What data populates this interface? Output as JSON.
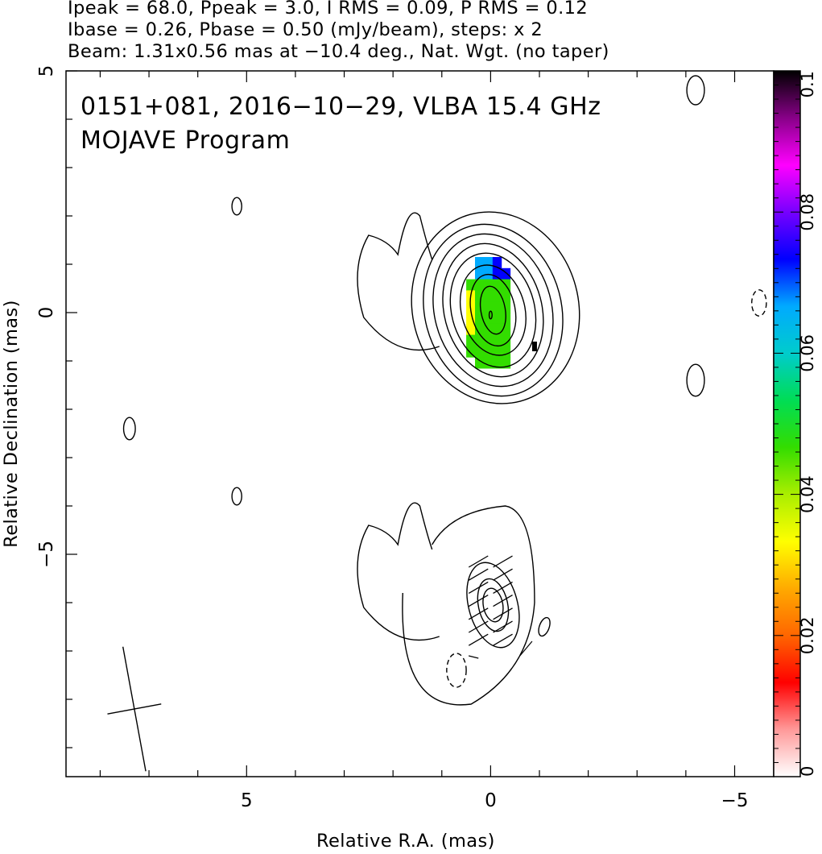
{
  "header": {
    "line1": "Ipeak = 68.0, Ppeak = 3.0, I RMS = 0.09, P RMS = 0.12",
    "line2": "Ibase = 0.26, Pbase = 0.50 (mJy/beam), steps: x 2",
    "line3": "Beam: 1.31x0.56 mas at −10.4 deg., Nat. Wgt. (no taper)"
  },
  "chart_data": {
    "type": "heatmap",
    "title": "0151+081, 2016−10−29, VLBA 15.4 GHz",
    "subtitle": "MOJAVE Program",
    "xlabel": "Relative R.A. (mas)",
    "ylabel": "Relative Declination (mas)",
    "xlim": [
      8.7,
      -5.8
    ],
    "ylim": [
      -9.6,
      5
    ],
    "x_ticks": [
      5,
      0,
      -5
    ],
    "x_tick_labels": [
      "5",
      "0",
      "−5"
    ],
    "y_ticks": [
      5,
      0,
      -5
    ],
    "y_tick_labels": [
      "5",
      "0",
      "−5"
    ],
    "colorbar": {
      "min": 0,
      "max": 0.1,
      "ticks": [
        0,
        0.02,
        0.04,
        0.06,
        0.08,
        0.1
      ],
      "tick_labels": [
        "0",
        "0.02",
        "0.04",
        "0.06",
        "0.08",
        "0.1"
      ],
      "colors": [
        "#ffffff",
        "#ff9999",
        "#ff0000",
        "#ff6600",
        "#ffaa00",
        "#ffff00",
        "#aaee00",
        "#33dd00",
        "#00dd55",
        "#00cccc",
        "#00aaff",
        "#0000ff",
        "#7700ff",
        "#ff00ff",
        "#880088",
        "#000000"
      ]
    },
    "upper_panel": {
      "contour_levels": 9,
      "contours": [
        {
          "cx": -0.1,
          "cy": 0.1,
          "rx": 1.7,
          "ry": 2.0,
          "angle": -15
        },
        {
          "cx": -0.05,
          "cy": 0.05,
          "rx": 1.4,
          "ry": 1.8,
          "angle": -15
        },
        {
          "cx": -0.05,
          "cy": 0.05,
          "rx": 1.2,
          "ry": 1.6,
          "angle": -15
        },
        {
          "cx": -0.05,
          "cy": 0.05,
          "rx": 1.0,
          "ry": 1.4,
          "angle": -15
        },
        {
          "cx": -0.05,
          "cy": 0.05,
          "rx": 0.85,
          "ry": 1.2,
          "angle": -15
        },
        {
          "cx": -0.05,
          "cy": 0.05,
          "rx": 0.65,
          "ry": 0.95,
          "angle": -15
        },
        {
          "cx": -0.05,
          "cy": 0.05,
          "rx": 0.45,
          "ry": 0.75,
          "angle": -12
        },
        {
          "cx": -0.05,
          "cy": 0.05,
          "rx": 0.25,
          "ry": 0.5,
          "angle": -10
        },
        {
          "cx": 0.0,
          "cy": -0.05,
          "rx": 0.03,
          "ry": 0.08,
          "angle": 0
        }
      ],
      "islands": [
        {
          "cx": 5.2,
          "cy": 2.2,
          "rx": 0.1,
          "ry": 0.18,
          "dashed": false
        },
        {
          "cx": -4.2,
          "cy": 4.6,
          "rx": 0.18,
          "ry": 0.3,
          "dashed": false
        },
        {
          "cx": -4.2,
          "cy": -1.4,
          "rx": 0.18,
          "ry": 0.33,
          "dashed": false
        },
        {
          "cx": -5.5,
          "cy": 0.2,
          "rx": 0.15,
          "ry": 0.27,
          "dashed": true
        }
      ],
      "polarization_fraction_color_values": [
        0.02,
        0.03,
        0.04,
        0.05,
        0.06,
        0.07
      ]
    },
    "lower_panel": {
      "contour_levels": 3,
      "evpa_vectors": 14,
      "islands": [
        {
          "cx": 7.4,
          "cy": -2.4,
          "rx": 0.12,
          "ry": 0.23,
          "dashed": false
        },
        {
          "cx": 5.2,
          "cy": -3.8,
          "rx": 0.1,
          "ry": 0.18,
          "dashed": false
        },
        {
          "cx": 0.7,
          "cy": -7.4,
          "rx": 0.2,
          "ry": 0.35,
          "dashed": true
        }
      ]
    },
    "beam": {
      "major_mas": 1.31,
      "minor_mas": 0.56,
      "pa_deg": -10.4,
      "x": 7.3,
      "y": -8.2
    }
  }
}
